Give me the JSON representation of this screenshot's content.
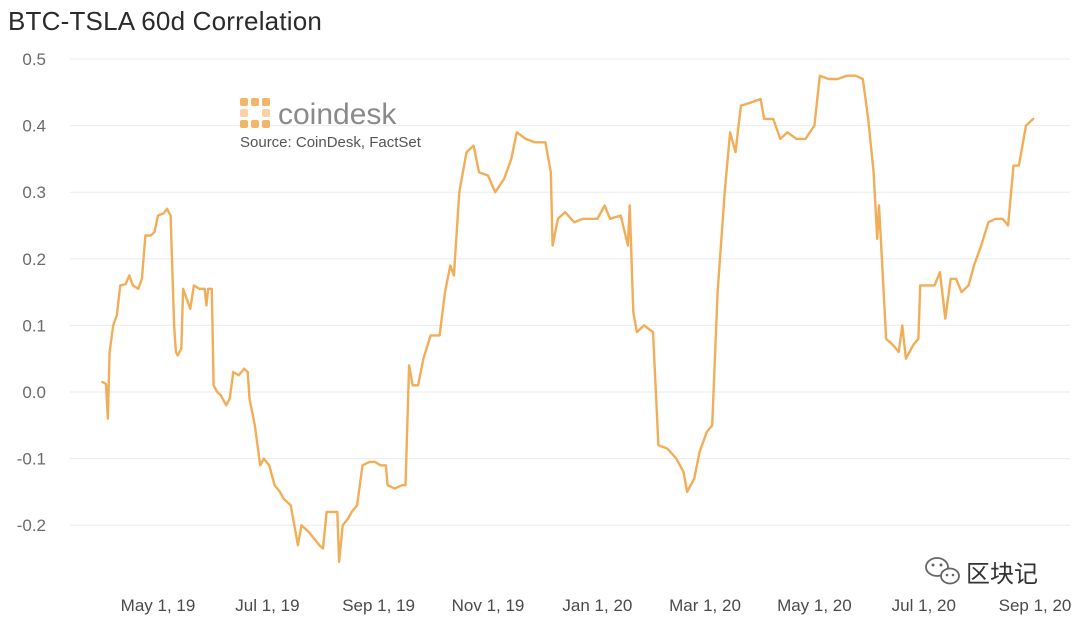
{
  "chart_data": {
    "type": "line",
    "title": "BTC-TSLA 60d Correlation",
    "xlabel": "",
    "ylabel": "",
    "ylim": [
      -0.25,
      0.5
    ],
    "y_ticks": [
      "0.5",
      "0.4",
      "0.3",
      "0.2",
      "0.1",
      "0.0",
      "-0.1",
      "-0.2"
    ],
    "x_ticks": [
      "May 1, 19",
      "Jul 1, 19",
      "Sep 1, 19",
      "Nov 1, 19",
      "Jan 1, 20",
      "Mar 1, 20",
      "May 1, 20",
      "Jul 1, 20",
      "Sep 1, 20"
    ],
    "grid": true,
    "line_color": "#f2ad58",
    "series": [
      {
        "name": "",
        "points": [
          [
            "2019-03-31",
            0.015
          ],
          [
            "2019-04-02",
            0.012
          ],
          [
            "2019-04-03",
            -0.04
          ],
          [
            "2019-04-04",
            0.06
          ],
          [
            "2019-04-06",
            0.1
          ],
          [
            "2019-04-08",
            0.115
          ],
          [
            "2019-04-10",
            0.16
          ],
          [
            "2019-04-13",
            0.162
          ],
          [
            "2019-04-15",
            0.175
          ],
          [
            "2019-04-17",
            0.16
          ],
          [
            "2019-04-20",
            0.155
          ],
          [
            "2019-04-22",
            0.17
          ],
          [
            "2019-04-24",
            0.235
          ],
          [
            "2019-04-27",
            0.235
          ],
          [
            "2019-04-29",
            0.24
          ],
          [
            "2019-05-01",
            0.265
          ],
          [
            "2019-05-04",
            0.268
          ],
          [
            "2019-05-06",
            0.275
          ],
          [
            "2019-05-08",
            0.265
          ],
          [
            "2019-05-10",
            0.1
          ],
          [
            "2019-05-11",
            0.06
          ],
          [
            "2019-05-12",
            0.055
          ],
          [
            "2019-05-14",
            0.065
          ],
          [
            "2019-05-15",
            0.155
          ],
          [
            "2019-05-17",
            0.14
          ],
          [
            "2019-05-19",
            0.125
          ],
          [
            "2019-05-21",
            0.16
          ],
          [
            "2019-05-24",
            0.155
          ],
          [
            "2019-05-27",
            0.155
          ],
          [
            "2019-05-28",
            0.13
          ],
          [
            "2019-05-29",
            0.155
          ],
          [
            "2019-05-31",
            0.155
          ],
          [
            "2019-06-01",
            0.01
          ],
          [
            "2019-06-03",
            0.0
          ],
          [
            "2019-06-05",
            -0.005
          ],
          [
            "2019-06-08",
            -0.02
          ],
          [
            "2019-06-10",
            -0.01
          ],
          [
            "2019-06-12",
            0.03
          ],
          [
            "2019-06-15",
            0.025
          ],
          [
            "2019-06-18",
            0.035
          ],
          [
            "2019-06-20",
            0.03
          ],
          [
            "2019-06-21",
            -0.01
          ],
          [
            "2019-06-24",
            -0.05
          ],
          [
            "2019-06-27",
            -0.11
          ],
          [
            "2019-06-29",
            -0.1
          ],
          [
            "2019-07-02",
            -0.11
          ],
          [
            "2019-07-05",
            -0.14
          ],
          [
            "2019-07-08",
            -0.15
          ],
          [
            "2019-07-10",
            -0.16
          ],
          [
            "2019-07-14",
            -0.17
          ],
          [
            "2019-07-16",
            -0.2
          ],
          [
            "2019-07-18",
            -0.23
          ],
          [
            "2019-07-20",
            -0.2
          ],
          [
            "2019-07-24",
            -0.21
          ],
          [
            "2019-07-27",
            -0.22
          ],
          [
            "2019-07-30",
            -0.23
          ],
          [
            "2019-08-01",
            -0.235
          ],
          [
            "2019-08-03",
            -0.18
          ],
          [
            "2019-08-06",
            -0.18
          ],
          [
            "2019-08-09",
            -0.18
          ],
          [
            "2019-08-10",
            -0.255
          ],
          [
            "2019-08-12",
            -0.2
          ],
          [
            "2019-08-15",
            -0.19
          ],
          [
            "2019-08-17",
            -0.18
          ],
          [
            "2019-08-20",
            -0.17
          ],
          [
            "2019-08-23",
            -0.11
          ],
          [
            "2019-08-27",
            -0.105
          ],
          [
            "2019-08-30",
            -0.105
          ],
          [
            "2019-09-02",
            -0.11
          ],
          [
            "2019-09-05",
            -0.11
          ],
          [
            "2019-09-06",
            -0.14
          ],
          [
            "2019-09-10",
            -0.145
          ],
          [
            "2019-09-14",
            -0.14
          ],
          [
            "2019-09-16",
            -0.14
          ],
          [
            "2019-09-18",
            0.04
          ],
          [
            "2019-09-20",
            0.01
          ],
          [
            "2019-09-23",
            0.01
          ],
          [
            "2019-09-26",
            0.05
          ],
          [
            "2019-09-30",
            0.085
          ],
          [
            "2019-10-05",
            0.085
          ],
          [
            "2019-10-08",
            0.15
          ],
          [
            "2019-10-11",
            0.19
          ],
          [
            "2019-10-13",
            0.175
          ],
          [
            "2019-10-16",
            0.3
          ],
          [
            "2019-10-20",
            0.36
          ],
          [
            "2019-10-24",
            0.37
          ],
          [
            "2019-10-27",
            0.33
          ],
          [
            "2019-11-01",
            0.325
          ],
          [
            "2019-11-05",
            0.3
          ],
          [
            "2019-11-10",
            0.32
          ],
          [
            "2019-11-14",
            0.35
          ],
          [
            "2019-11-17",
            0.39
          ],
          [
            "2019-11-22",
            0.38
          ],
          [
            "2019-11-27",
            0.375
          ],
          [
            "2019-12-03",
            0.375
          ],
          [
            "2019-12-06",
            0.33
          ],
          [
            "2019-12-07",
            0.22
          ],
          [
            "2019-12-10",
            0.26
          ],
          [
            "2019-12-14",
            0.27
          ],
          [
            "2019-12-19",
            0.255
          ],
          [
            "2019-12-24",
            0.26
          ],
          [
            "2020-01-01",
            0.26
          ],
          [
            "2020-01-05",
            0.28
          ],
          [
            "2020-01-08",
            0.26
          ],
          [
            "2020-01-14",
            0.265
          ],
          [
            "2020-01-18",
            0.22
          ],
          [
            "2020-01-19",
            0.28
          ],
          [
            "2020-01-21",
            0.12
          ],
          [
            "2020-01-23",
            0.09
          ],
          [
            "2020-01-27",
            0.1
          ],
          [
            "2020-02-01",
            0.09
          ],
          [
            "2020-02-04",
            -0.08
          ],
          [
            "2020-02-09",
            -0.085
          ],
          [
            "2020-02-14",
            -0.1
          ],
          [
            "2020-02-18",
            -0.12
          ],
          [
            "2020-02-20",
            -0.15
          ],
          [
            "2020-02-24",
            -0.13
          ],
          [
            "2020-02-27",
            -0.09
          ],
          [
            "2020-03-02",
            -0.06
          ],
          [
            "2020-03-05",
            -0.05
          ],
          [
            "2020-03-08",
            0.15
          ],
          [
            "2020-03-12",
            0.3
          ],
          [
            "2020-03-15",
            0.39
          ],
          [
            "2020-03-18",
            0.36
          ],
          [
            "2020-03-21",
            0.43
          ],
          [
            "2020-03-27",
            0.435
          ],
          [
            "2020-04-01",
            0.44
          ],
          [
            "2020-04-03",
            0.41
          ],
          [
            "2020-04-08",
            0.41
          ],
          [
            "2020-04-12",
            0.38
          ],
          [
            "2020-04-16",
            0.39
          ],
          [
            "2020-04-21",
            0.38
          ],
          [
            "2020-04-26",
            0.38
          ],
          [
            "2020-05-01",
            0.4
          ],
          [
            "2020-05-04",
            0.475
          ],
          [
            "2020-05-09",
            0.47
          ],
          [
            "2020-05-14",
            0.47
          ],
          [
            "2020-05-19",
            0.475
          ],
          [
            "2020-05-24",
            0.475
          ],
          [
            "2020-05-28",
            0.47
          ],
          [
            "2020-05-31",
            0.41
          ],
          [
            "2020-06-03",
            0.33
          ],
          [
            "2020-06-05",
            0.23
          ],
          [
            "2020-06-06",
            0.28
          ],
          [
            "2020-06-08",
            0.18
          ],
          [
            "2020-06-10",
            0.08
          ],
          [
            "2020-06-14",
            0.07
          ],
          [
            "2020-06-17",
            0.06
          ],
          [
            "2020-06-19",
            0.1
          ],
          [
            "2020-06-21",
            0.05
          ],
          [
            "2020-06-25",
            0.07
          ],
          [
            "2020-06-28",
            0.08
          ],
          [
            "2020-06-29",
            0.16
          ],
          [
            "2020-07-03",
            0.16
          ],
          [
            "2020-07-07",
            0.16
          ],
          [
            "2020-07-10",
            0.18
          ],
          [
            "2020-07-13",
            0.11
          ],
          [
            "2020-07-16",
            0.17
          ],
          [
            "2020-07-19",
            0.17
          ],
          [
            "2020-07-22",
            0.15
          ],
          [
            "2020-07-26",
            0.16
          ],
          [
            "2020-07-29",
            0.19
          ],
          [
            "2020-08-02",
            0.22
          ],
          [
            "2020-08-06",
            0.255
          ],
          [
            "2020-08-10",
            0.26
          ],
          [
            "2020-08-14",
            0.26
          ],
          [
            "2020-08-17",
            0.25
          ],
          [
            "2020-08-20",
            0.34
          ],
          [
            "2020-08-23",
            0.34
          ],
          [
            "2020-08-27",
            0.4
          ],
          [
            "2020-08-31",
            0.41
          ]
        ]
      }
    ]
  },
  "logo": {
    "icon": "coindesk-grid-icon",
    "text": "coindesk",
    "source": "Source: CoinDesk, FactSet",
    "color": "#f2ad58"
  },
  "watermark": {
    "icon": "wechat-icon",
    "text": "区块记"
  }
}
